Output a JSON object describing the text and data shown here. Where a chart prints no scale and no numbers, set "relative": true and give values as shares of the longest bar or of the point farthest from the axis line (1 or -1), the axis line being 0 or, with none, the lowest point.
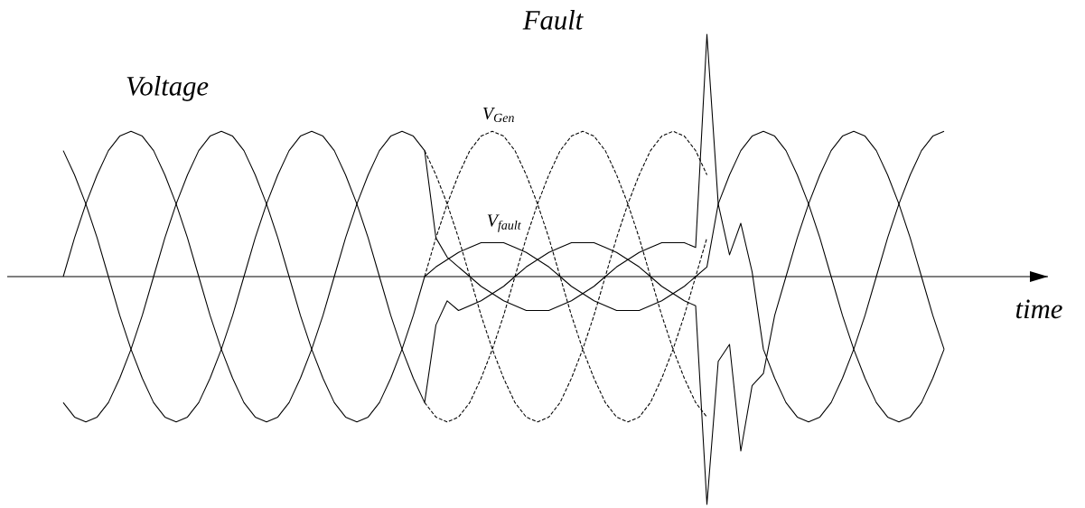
{
  "chart_data": {
    "type": "line",
    "title": "Fault",
    "ylabel": "Voltage",
    "xlabel": "time",
    "relative": true,
    "marker": "none",
    "annotations": [
      "V$_{Gen}$",
      "V$_{fault}$"
    ],
    "categories": [
      null,
      null,
      null,
      null,
      null,
      null,
      null,
      null,
      null,
      null,
      null,
      null,
      null,
      null,
      null,
      null,
      null,
      null,
      null,
      null,
      null,
      null,
      null,
      null,
      null,
      null,
      null,
      null,
      null,
      null,
      null,
      null,
      null,
      null,
      null,
      null,
      null,
      null,
      null,
      null,
      null,
      null,
      null,
      null,
      null,
      null,
      null,
      null,
      null,
      null,
      null,
      null,
      null,
      null,
      null,
      null,
      null,
      null,
      null,
      null,
      null,
      null,
      null,
      null,
      null,
      null,
      null,
      null,
      null,
      null,
      null,
      null,
      null,
      null,
      null,
      null,
      null,
      null,
      null
    ],
    "series": [
      {
        "color": "#000000",
        "line_style": "solid",
        "values": [
          0,
          0.16,
          0.3,
          0.42,
          0.52,
          0.58,
          0.6,
          0.58,
          0.52,
          0.42,
          0.3,
          0.16,
          0,
          -0.16,
          -0.3,
          -0.42,
          -0.52,
          -0.58,
          -0.6,
          -0.58,
          -0.52,
          -0.42,
          -0.3,
          -0.16,
          0,
          0.16,
          0.3,
          0.42,
          0.52,
          0.58,
          0.6,
          0.58,
          0.52,
          0.16,
          0.08,
          0.04,
          0,
          -0.04,
          -0.07,
          -0.1,
          -0.12,
          -0.14,
          -0.14,
          -0.14,
          -0.12,
          -0.1,
          -0.07,
          -0.04,
          0,
          0.04,
          0.07,
          0.1,
          0.12,
          0.14,
          0.14,
          0.14,
          0.12,
          1.0,
          0.3,
          0.09,
          0.22,
          0.02,
          -0.3,
          -0.42,
          -0.52,
          -0.58,
          -0.6,
          -0.58,
          -0.52,
          -0.42,
          -0.3,
          -0.16,
          0,
          0.16,
          0.3,
          0.42,
          0.52,
          0.58,
          0.6
        ]
      },
      {
        "color": "#000000",
        "line_style": "solid",
        "values": [
          -0.52,
          -0.58,
          -0.6,
          -0.58,
          -0.52,
          -0.42,
          -0.3,
          -0.16,
          0,
          0.16,
          0.3,
          0.42,
          0.52,
          0.58,
          0.6,
          0.58,
          0.52,
          0.42,
          0.3,
          0.16,
          0,
          -0.16,
          -0.3,
          -0.42,
          -0.52,
          -0.58,
          -0.6,
          -0.58,
          -0.52,
          -0.42,
          -0.3,
          -0.16,
          0,
          0.04,
          0.07,
          0.1,
          0.12,
          0.14,
          0.14,
          0.14,
          0.12,
          0.1,
          0.07,
          0.04,
          0,
          -0.04,
          -0.07,
          -0.1,
          -0.12,
          -0.14,
          -0.14,
          -0.14,
          -0.12,
          -0.1,
          -0.07,
          -0.04,
          0,
          0.04,
          0.3,
          0.42,
          0.52,
          0.58,
          0.6,
          0.58,
          0.52,
          0.42,
          0.3,
          0.16,
          0,
          -0.16,
          -0.3,
          -0.42,
          -0.52,
          -0.58,
          -0.6,
          -0.58,
          -0.52,
          -0.42,
          -0.3
        ]
      },
      {
        "color": "#000000",
        "line_style": "solid",
        "values": [
          0.52,
          0.42,
          0.3,
          0.16,
          0,
          -0.16,
          -0.3,
          -0.42,
          -0.52,
          -0.58,
          -0.6,
          -0.58,
          -0.52,
          -0.42,
          -0.3,
          -0.16,
          0,
          0.16,
          0.3,
          0.42,
          0.52,
          0.58,
          0.6,
          0.58,
          0.52,
          0.42,
          0.3,
          0.16,
          0,
          -0.16,
          -0.3,
          -0.42,
          -0.52,
          -0.2,
          -0.1,
          -0.14,
          -0.12,
          -0.1,
          -0.07,
          -0.04,
          0,
          0.04,
          0.07,
          0.1,
          0.12,
          0.14,
          0.14,
          0.14,
          0.12,
          0.1,
          0.07,
          0.04,
          0,
          -0.04,
          -0.07,
          -0.1,
          -0.12,
          -0.94,
          -0.35,
          -0.28,
          -0.72,
          -0.45,
          -0.4,
          -0.16,
          0,
          0.16,
          0.3,
          0.42,
          0.52,
          0.58,
          0.6,
          0.58,
          0.52,
          0.42,
          0.3,
          0.16,
          0,
          -0.16,
          -0.3
        ]
      },
      {
        "color": "#000000",
        "line_style": "dashed",
        "values": [
          null,
          null,
          null,
          null,
          null,
          null,
          null,
          null,
          null,
          null,
          null,
          null,
          null,
          null,
          null,
          null,
          null,
          null,
          null,
          null,
          null,
          null,
          null,
          null,
          null,
          null,
          null,
          null,
          null,
          null,
          null,
          null,
          0.52,
          0.42,
          0.3,
          0.16,
          0,
          -0.16,
          -0.3,
          -0.42,
          -0.52,
          -0.58,
          -0.6,
          -0.58,
          -0.52,
          -0.42,
          -0.3,
          -0.16,
          0,
          0.16,
          0.3,
          0.42,
          0.52,
          0.58,
          0.6,
          0.58,
          0.52,
          0.42,
          null,
          null,
          null,
          null,
          null,
          null,
          null,
          null,
          null,
          null,
          null,
          null,
          null,
          null,
          null,
          null,
          null,
          null,
          null,
          null,
          null
        ]
      },
      {
        "color": "#000000",
        "line_style": "dashed",
        "values": [
          null,
          null,
          null,
          null,
          null,
          null,
          null,
          null,
          null,
          null,
          null,
          null,
          null,
          null,
          null,
          null,
          null,
          null,
          null,
          null,
          null,
          null,
          null,
          null,
          null,
          null,
          null,
          null,
          null,
          null,
          null,
          null,
          0,
          0.16,
          0.3,
          0.42,
          0.52,
          0.58,
          0.6,
          0.58,
          0.52,
          0.42,
          0.3,
          0.16,
          0,
          -0.16,
          -0.3,
          -0.42,
          -0.52,
          -0.58,
          -0.6,
          -0.58,
          -0.52,
          -0.42,
          -0.3,
          -0.16,
          0,
          0.16,
          null,
          null,
          null,
          null,
          null,
          null,
          null,
          null,
          null,
          null,
          null,
          null,
          null,
          null,
          null,
          null,
          null,
          null,
          null,
          null,
          null
        ]
      },
      {
        "color": "#000000",
        "line_style": "dashed",
        "values": [
          null,
          null,
          null,
          null,
          null,
          null,
          null,
          null,
          null,
          null,
          null,
          null,
          null,
          null,
          null,
          null,
          null,
          null,
          null,
          null,
          null,
          null,
          null,
          null,
          null,
          null,
          null,
          null,
          null,
          null,
          null,
          null,
          -0.52,
          -0.58,
          -0.6,
          -0.58,
          -0.52,
          -0.42,
          -0.3,
          -0.16,
          0,
          0.16,
          0.3,
          0.42,
          0.52,
          0.58,
          0.6,
          0.58,
          0.52,
          0.42,
          0.3,
          0.16,
          0,
          -0.16,
          -0.3,
          -0.42,
          -0.52,
          -0.58,
          null,
          null,
          null,
          null,
          null,
          null,
          null,
          null,
          null,
          null,
          null,
          null,
          null,
          null,
          null,
          null,
          null,
          null,
          null,
          null,
          null
        ]
      }
    ]
  }
}
